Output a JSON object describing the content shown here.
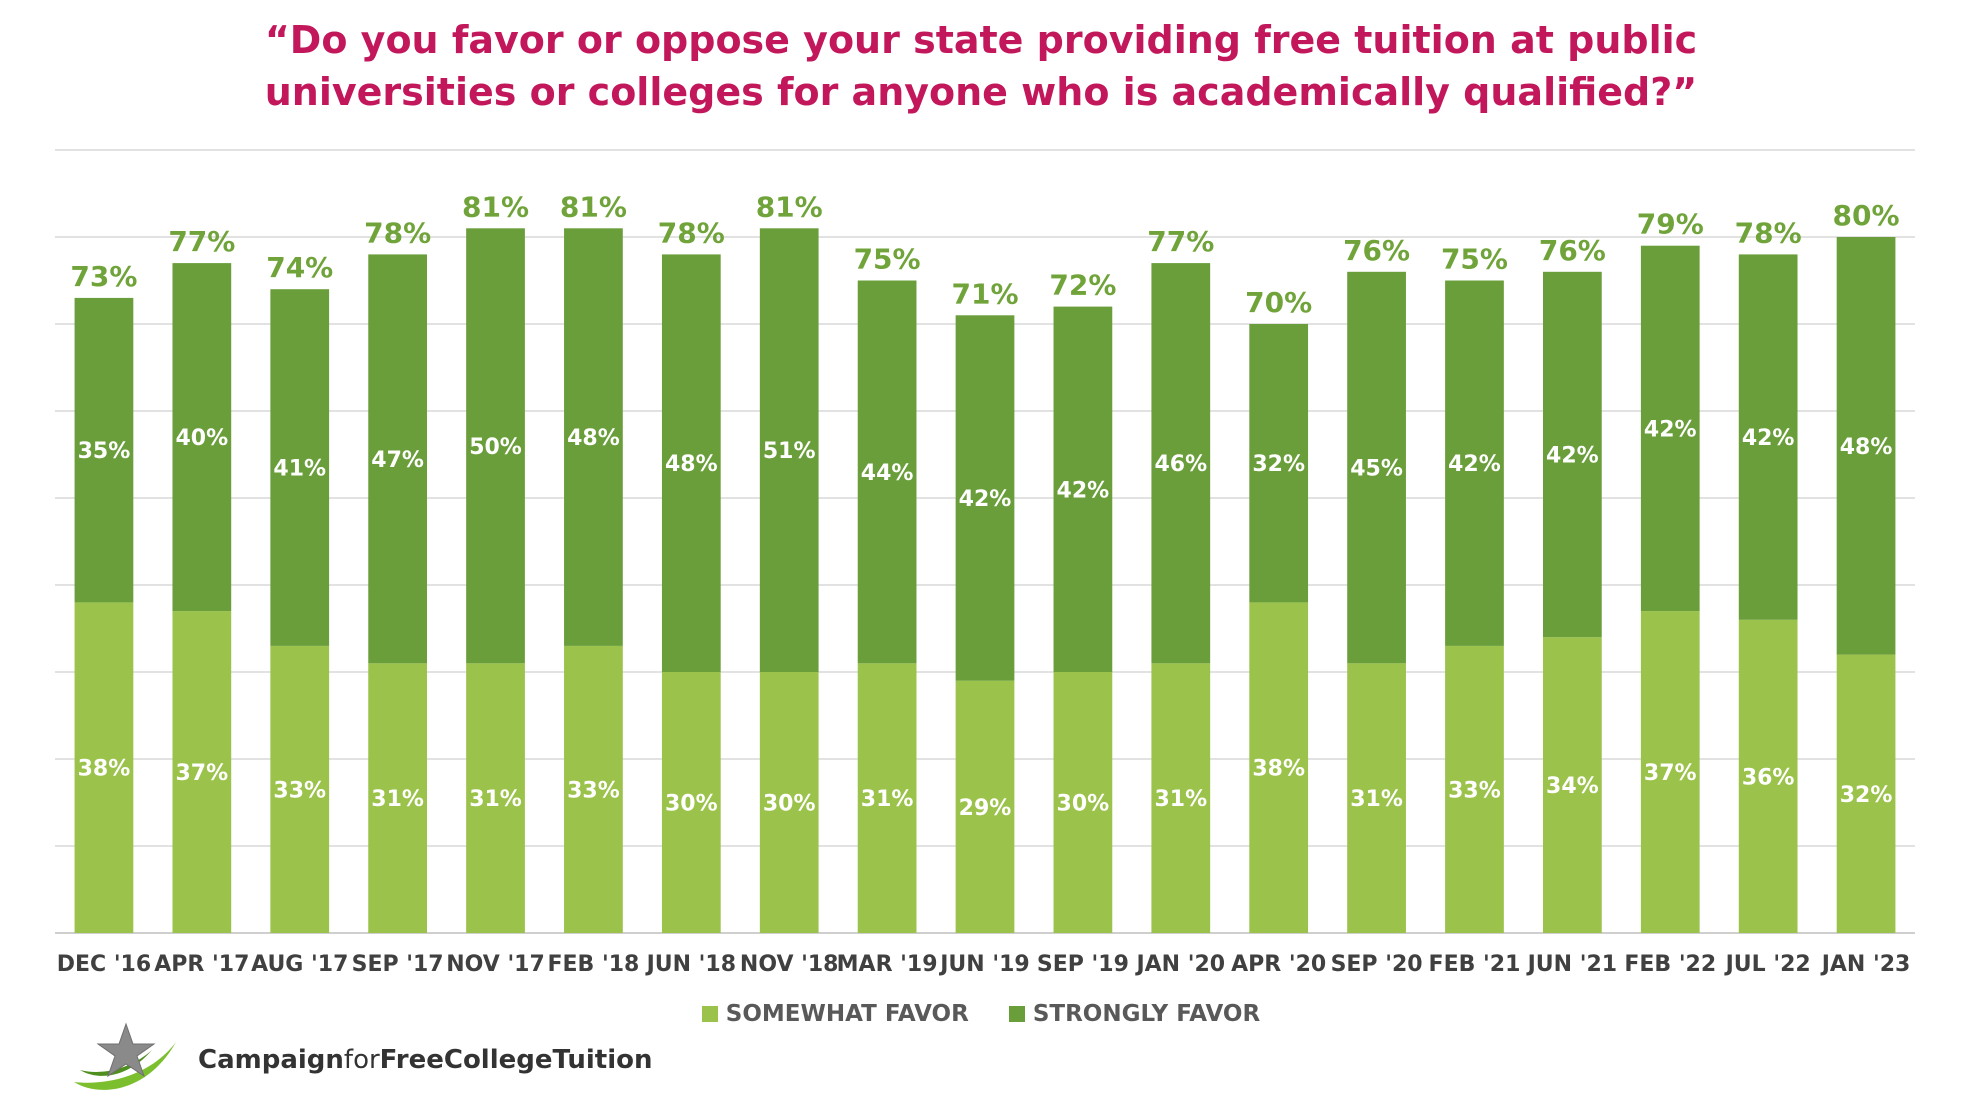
{
  "chart_data": {
    "type": "bar",
    "stacked": true,
    "title_lines": [
      "“Do you favor or oppose your state providing free tuition at public",
      "universities or colleges for anyone who is academically qualified?”"
    ],
    "categories": [
      "DEC '16",
      "APR '17",
      "AUG '17",
      "SEP '17",
      "NOV '17",
      "FEB '18",
      "JUN '18",
      "NOV '18",
      "MAR '19",
      "JUN '19",
      "SEP '19",
      "JAN '20",
      "APR '20",
      "SEP '20",
      "FEB '21",
      "JUN '21",
      "FEB '22",
      "JUL '22",
      "JAN '23"
    ],
    "series": [
      {
        "name": "SOMEWHAT FAVOR",
        "color": "#9bc24a",
        "values": [
          38,
          37,
          33,
          31,
          31,
          33,
          30,
          30,
          31,
          29,
          30,
          31,
          38,
          31,
          33,
          34,
          37,
          36,
          32
        ]
      },
      {
        "name": "STRONGLY FAVOR",
        "color": "#6a9e3a",
        "values": [
          35,
          40,
          41,
          47,
          50,
          48,
          48,
          51,
          44,
          42,
          42,
          46,
          32,
          45,
          42,
          42,
          42,
          42,
          48
        ]
      }
    ],
    "totals": [
      73,
      77,
      74,
      78,
      81,
      81,
      78,
      81,
      75,
      71,
      72,
      77,
      70,
      76,
      75,
      76,
      79,
      78,
      80
    ],
    "ylim": [
      0,
      90
    ],
    "grid": true,
    "legend_position": "bottom"
  },
  "logo": {
    "text_part1": "Campaign",
    "text_part2": "for",
    "text_part3": "FreeCollegeTuition",
    "icon": "star-swoosh-icon"
  }
}
